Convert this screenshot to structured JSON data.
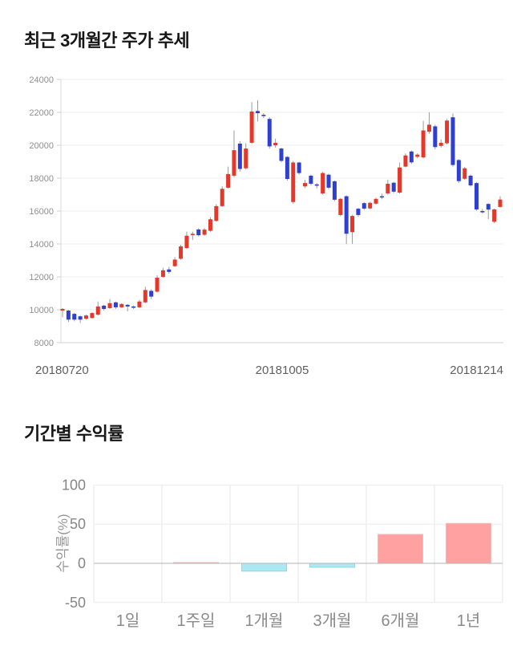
{
  "chart_data": [
    {
      "type": "candlestick",
      "title": "최근 3개월간 주가 추세",
      "x_axis_labels": [
        "20180720",
        "20181005",
        "20181214"
      ],
      "y_ticks": [
        8000,
        10000,
        12000,
        14000,
        16000,
        18000,
        20000,
        22000,
        24000
      ],
      "ylim": [
        8000,
        24000
      ],
      "grid": true,
      "up_color": "#e4382b",
      "down_color": "#2e3fd1",
      "wick_color": "#9b9b9b",
      "candle_format": [
        "open",
        "close",
        "low",
        "high"
      ],
      "candles": [
        [
          9950,
          10050,
          9550,
          10100
        ],
        [
          9950,
          9400,
          9250,
          10000
        ],
        [
          9750,
          9400,
          9300,
          9800
        ],
        [
          9600,
          9400,
          9200,
          9650
        ],
        [
          9450,
          9650,
          9400,
          9700
        ],
        [
          9500,
          9800,
          9450,
          9850
        ],
        [
          9700,
          10200,
          9650,
          10500
        ],
        [
          10250,
          10050,
          9950,
          10300
        ],
        [
          10100,
          10400,
          10050,
          10650
        ],
        [
          10450,
          10150,
          10050,
          10500
        ],
        [
          10150,
          10350,
          10100,
          10400
        ],
        [
          10300,
          10200,
          9900,
          10350
        ],
        [
          10200,
          10150,
          10050,
          10250
        ],
        [
          10150,
          10500,
          10100,
          10600
        ],
        [
          10450,
          11200,
          10400,
          11400
        ],
        [
          11150,
          10800,
          10650,
          11250
        ],
        [
          11100,
          11950,
          11050,
          12100
        ],
        [
          12000,
          12400,
          11950,
          12550
        ],
        [
          12450,
          12300,
          12200,
          12600
        ],
        [
          12650,
          13050,
          12600,
          13200
        ],
        [
          13100,
          13850,
          13050,
          13950
        ],
        [
          13750,
          14500,
          13700,
          14750
        ],
        [
          14600,
          14620,
          14250,
          14750
        ],
        [
          14880,
          14530,
          14450,
          14950
        ],
        [
          14560,
          14870,
          14500,
          14960
        ],
        [
          14800,
          15500,
          14740,
          15620
        ],
        [
          15400,
          16300,
          15340,
          16420
        ],
        [
          16300,
          17350,
          16250,
          17500
        ],
        [
          17420,
          18250,
          17360,
          18700
        ],
        [
          18150,
          19700,
          18060,
          20900
        ],
        [
          20100,
          18560,
          18400,
          20250
        ],
        [
          18600,
          19800,
          18520,
          20130
        ],
        [
          20150,
          22050,
          20080,
          22620
        ],
        [
          22080,
          21950,
          21450,
          22740
        ],
        [
          21850,
          21800,
          21650,
          21950
        ],
        [
          21600,
          19930,
          19800,
          21700
        ],
        [
          20000,
          20150,
          19850,
          20400
        ],
        [
          19800,
          19050,
          18950,
          19850
        ],
        [
          19290,
          17950,
          17850,
          19340
        ],
        [
          16550,
          18950,
          16450,
          19050
        ],
        [
          18950,
          18310,
          18210,
          19000
        ],
        [
          17500,
          17700,
          17400,
          17900
        ],
        [
          18150,
          17660,
          17570,
          18220
        ],
        [
          17620,
          17580,
          17380,
          17700
        ],
        [
          17070,
          18310,
          17000,
          18400
        ],
        [
          18210,
          17420,
          17330,
          18260
        ],
        [
          17810,
          16690,
          16600,
          17860
        ],
        [
          15760,
          16740,
          15680,
          16800
        ],
        [
          16900,
          14620,
          13990,
          16950
        ],
        [
          14720,
          15700,
          14010,
          15780
        ],
        [
          16140,
          15760,
          15660,
          16200
        ],
        [
          16480,
          16150,
          16070,
          16530
        ],
        [
          16160,
          16500,
          16110,
          16560
        ],
        [
          16450,
          16740,
          16390,
          16810
        ],
        [
          16900,
          16880,
          16720,
          17060
        ],
        [
          17070,
          17660,
          17000,
          17900
        ],
        [
          17720,
          17180,
          17090,
          17770
        ],
        [
          17120,
          18650,
          17060,
          18950
        ],
        [
          18700,
          19380,
          18650,
          19500
        ],
        [
          19620,
          18960,
          18860,
          19680
        ],
        [
          19300,
          19430,
          19210,
          19510
        ],
        [
          19260,
          20900,
          19200,
          21480
        ],
        [
          20820,
          21250,
          20700,
          22000
        ],
        [
          21150,
          19890,
          19760,
          21250
        ],
        [
          19960,
          20150,
          19860,
          20350
        ],
        [
          20120,
          21500,
          20050,
          21600
        ],
        [
          21700,
          18800,
          18700,
          21930
        ],
        [
          19100,
          17820,
          17700,
          19160
        ],
        [
          17960,
          18600,
          17900,
          18680
        ],
        [
          18150,
          17560,
          17480,
          18220
        ],
        [
          17700,
          16100,
          16020,
          17760
        ],
        [
          16000,
          15980,
          15850,
          16120
        ],
        [
          16430,
          16090,
          15500,
          16480
        ],
        [
          15350,
          16100,
          15260,
          16150
        ],
        [
          16250,
          16700,
          16200,
          16900
        ]
      ]
    },
    {
      "type": "bar",
      "title": "기간별 수익률",
      "ylabel": "수익률(%)",
      "y_ticks": [
        100,
        50,
        0,
        -50
      ],
      "ylim": [
        -50,
        100
      ],
      "grid": true,
      "categories": [
        "1일",
        "1주일",
        "1개월",
        "3개월",
        "6개월",
        "1년"
      ],
      "values": [
        0,
        1,
        -10,
        -5,
        37,
        51
      ],
      "positive_color": "#ffa1a1",
      "positive_border": "#eebcbc",
      "negative_color": "#ace8f2",
      "negative_border": "#8fd8e5",
      "zero_line_color": "#b3b3b3"
    }
  ]
}
